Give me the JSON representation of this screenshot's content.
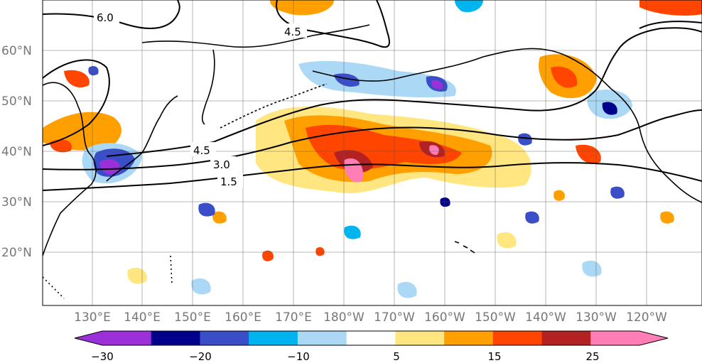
{
  "map": {
    "lon_labels": [
      "130°E",
      "140°E",
      "150°E",
      "160°E",
      "170°E",
      "180°W",
      "170°W",
      "160°W",
      "150°W",
      "140°W",
      "130°W",
      "120°W"
    ],
    "lat_labels": [
      "60°N",
      "50°N",
      "40°N",
      "30°N",
      "20°N"
    ],
    "contour_labels": [
      "6.0",
      "4.5",
      "4.5",
      "3.0",
      "1.5"
    ]
  },
  "colorbar": {
    "tick_labels": [
      "−30",
      "−20",
      "−10",
      "5",
      "15",
      "25"
    ],
    "colors": [
      "#9b30d9",
      "#00008b",
      "#3a4fc7",
      "#00b4f0",
      "#aad8f5",
      "#ffffff",
      "#ffe680",
      "#ffa000",
      "#ff4500",
      "#b22222",
      "#ff7eb6"
    ]
  },
  "colors": {
    "strong_neg": "#9b30d9",
    "neg_dark": "#00008b",
    "neg_mid": "#3a4fc7",
    "neg_light": "#00b4f0",
    "neg_pale": "#aad8f5",
    "pos_pale": "#ffe680",
    "pos_mid": "#ffa000",
    "pos_strong": "#ff4500",
    "pos_dark": "#b22222",
    "pos_max": "#ff7eb6"
  }
}
